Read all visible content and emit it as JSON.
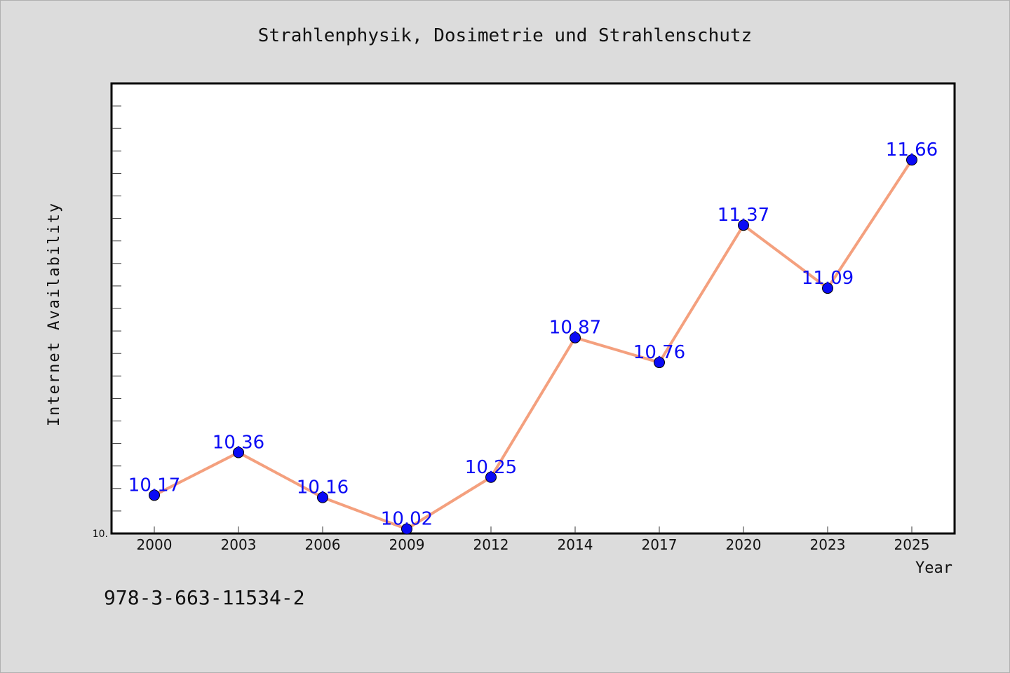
{
  "chart_data": {
    "type": "line",
    "title": "Strahlenphysik, Dosimetrie und Strahlenschutz",
    "xlabel": "Year",
    "ylabel": "Internet Availability",
    "categories": [
      "2000",
      "2003",
      "2006",
      "2009",
      "2012",
      "2014",
      "2017",
      "2020",
      "2023",
      "2025"
    ],
    "series": [
      {
        "values": [
          10.17,
          10.36,
          10.16,
          10.02,
          10.25,
          10.87,
          10.76,
          11.37,
          11.09,
          11.66
        ]
      }
    ],
    "data_labels": [
      "10.17",
      "10.36",
      "10.16",
      "10.02",
      "10.25",
      "10.87",
      "10.76",
      "11.37",
      "11.09",
      "11.66"
    ],
    "y_tick_label": "10.",
    "ylim": [
      10.0,
      12.0
    ],
    "grid": false,
    "line_color": "#f4a07e",
    "marker_color": "#0a0af5",
    "label_color": "#0a0af5"
  },
  "footer": {
    "isbn": "978-3-663-11534-2"
  }
}
